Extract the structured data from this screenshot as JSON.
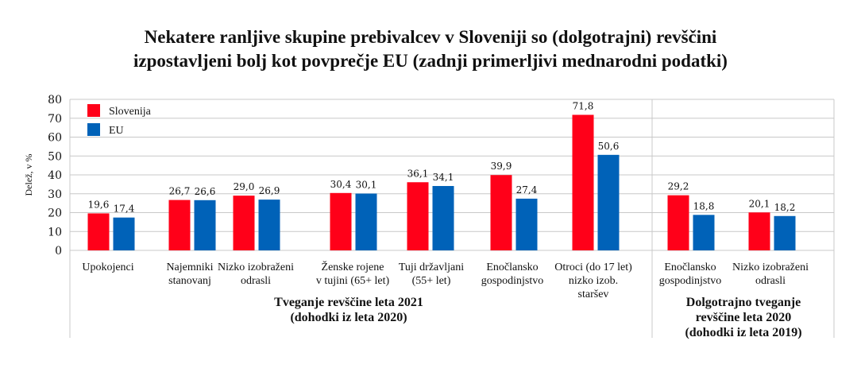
{
  "title_line1": "Nekatere ranljive skupine prebivalcev v Sloveniji so (dolgotrajni) revščini",
  "title_line2": "izpostavljeni bolj kot povprečje EU (zadnji primerljivi mednarodni podatki)",
  "chart_data": {
    "type": "bar",
    "title": "Nekatere ranljive skupine prebivalcev v Sloveniji so (dolgotrajni) revščini izpostavljeni bolj kot povprečje EU (zadnji primerljivi mednarodni podatki)",
    "ylabel": "Delež, v %",
    "xlabel": "",
    "ylim": [
      0,
      80
    ],
    "yticks": [
      "0",
      "10",
      "20",
      "30",
      "40",
      "50",
      "60",
      "70",
      "80"
    ],
    "grid": true,
    "legend_position": "top-left",
    "categories": [
      [
        "Upokojenci"
      ],
      [
        "Najemniki",
        "stanovanj"
      ],
      [
        "Nizko izobraženi",
        "odrasli"
      ],
      [
        "Ženske rojene",
        "v tujini (65+ let)"
      ],
      [
        "Tuji državljani",
        "(55+ let)"
      ],
      [
        "Enočlansko",
        "gospodinjstvo"
      ],
      [
        "Otroci (do 17 let)",
        "nizko izob.",
        "staršev"
      ],
      [
        "Enočlansko",
        "gospodinjstvo"
      ],
      [
        "Nizko izobraženi",
        "odrasli"
      ]
    ],
    "series": [
      {
        "name": "Slovenija",
        "color": "#ff0019",
        "values": [
          19.6,
          26.7,
          29.0,
          30.4,
          36.1,
          39.9,
          71.8,
          29.2,
          20.1
        ],
        "labels": [
          "19,6",
          "26,7",
          "29,0",
          "30,4",
          "36,1",
          "39,9",
          "71,8",
          "29,2",
          "20,1"
        ]
      },
      {
        "name": "EU",
        "color": "#0062b8",
        "values": [
          17.4,
          26.6,
          26.9,
          30.1,
          34.1,
          27.4,
          50.6,
          18.8,
          18.2
        ],
        "labels": [
          "17,4",
          "26,6",
          "26,9",
          "30,1",
          "34,1",
          "27,4",
          "50,6",
          "18,8",
          "18,2"
        ]
      }
    ],
    "groups": [
      {
        "lines": [
          "Tveganje revščine leta 2021",
          "(dohodki iz leta 2020)"
        ],
        "categories": [
          0,
          1,
          2,
          3,
          4,
          5,
          6
        ]
      },
      {
        "lines": [
          "Dolgotrajno tveganje",
          "revščine leta 2020",
          "(dohodki iz leta 2019)"
        ],
        "categories": [
          7,
          8
        ]
      }
    ]
  }
}
